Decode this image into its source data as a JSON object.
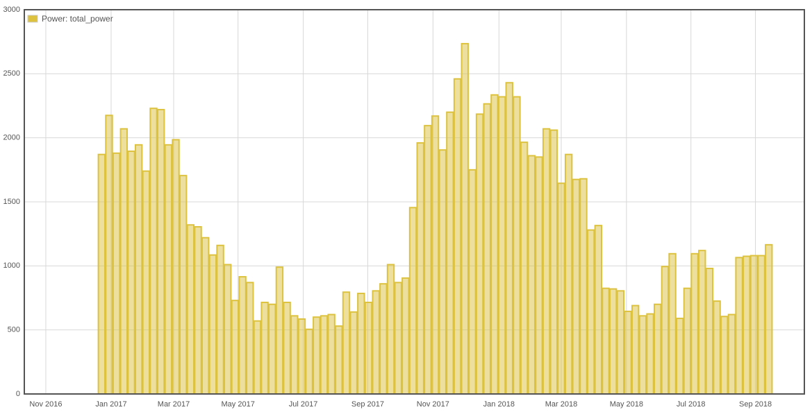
{
  "chart_data": {
    "type": "bar",
    "categories": [
      null,
      null,
      null,
      null,
      null,
      null,
      null,
      null,
      null,
      null,
      null,
      null,
      null,
      null,
      null,
      null,
      null,
      null,
      null,
      null,
      null,
      null,
      null,
      null,
      null,
      null,
      null,
      null,
      null,
      null,
      null,
      null,
      null,
      null,
      null,
      null,
      null,
      null,
      null,
      null,
      null,
      null,
      null,
      null,
      null,
      null,
      null,
      null,
      null,
      null,
      null,
      null,
      null,
      null,
      null,
      null,
      null,
      null,
      null,
      null,
      null,
      null,
      null,
      null,
      null,
      null,
      null,
      null,
      null,
      null,
      null,
      null,
      null,
      null,
      null,
      null,
      null,
      null,
      null,
      null,
      null,
      null,
      null,
      null,
      null,
      null,
      null,
      null,
      null,
      null,
      null
    ],
    "series": [
      {
        "name": "Power: total_power",
        "color": "#dcc23f",
        "values": [
          1870,
          2175,
          1880,
          2070,
          1895,
          1945,
          1740,
          2230,
          2220,
          1945,
          1985,
          1705,
          1320,
          1305,
          1220,
          1085,
          1160,
          1010,
          730,
          915,
          870,
          570,
          715,
          700,
          990,
          715,
          610,
          585,
          505,
          600,
          610,
          620,
          530,
          795,
          640,
          785,
          715,
          805,
          860,
          1010,
          870,
          905,
          1455,
          1960,
          2095,
          2170,
          1905,
          2200,
          2460,
          2735,
          1750,
          2185,
          2265,
          2335,
          2320,
          2430,
          2320,
          1965,
          1860,
          1850,
          2070,
          2060,
          1645,
          1870,
          1675,
          1680,
          1280,
          1315,
          825,
          820,
          805,
          645,
          690,
          610,
          625,
          700,
          995,
          1095,
          590,
          825,
          1095,
          1120,
          980,
          725,
          605,
          620,
          1065,
          1075,
          1080,
          1080,
          1165
        ]
      }
    ],
    "xlim": [
      -10.43,
      94.8
    ],
    "xticks": [
      {
        "value": -7.53,
        "label": "Nov 2016"
      },
      {
        "value": 1.28,
        "label": "Jan 2017"
      },
      {
        "value": 9.72,
        "label": "Mar 2017"
      },
      {
        "value": 18.4,
        "label": "May 2017"
      },
      {
        "value": 27.2,
        "label": "Jul 2017"
      },
      {
        "value": 35.9,
        "label": "Sep 2017"
      },
      {
        "value": 44.7,
        "label": "Nov 2017"
      },
      {
        "value": 53.6,
        "label": "Jan 2018"
      },
      {
        "value": 62.0,
        "label": "Mar 2018"
      },
      {
        "value": 70.8,
        "label": "May 2018"
      },
      {
        "value": 79.5,
        "label": "Jul 2018"
      },
      {
        "value": 88.2,
        "label": "Sep 2018"
      }
    ],
    "ylim": [
      0,
      3000
    ],
    "yticks": [
      0,
      500,
      1000,
      1500,
      2000,
      2500,
      3000
    ],
    "grid": true,
    "legend": "top-left"
  }
}
